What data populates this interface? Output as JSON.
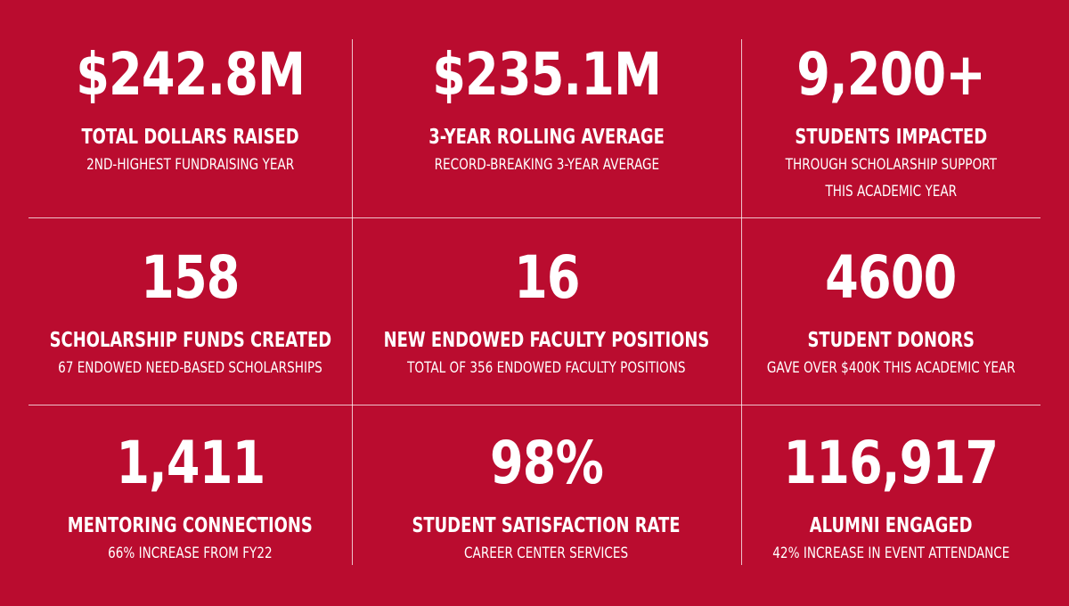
{
  "colors": {
    "background": "#ba0c2f",
    "text": "#ffffff",
    "divider": "#f2b8c3"
  },
  "stats": [
    {
      "value": "$242.8M",
      "label": "TOTAL DOLLARS RAISED",
      "sub": [
        "2ND-HIGHEST FUNDRAISING YEAR"
      ]
    },
    {
      "value": "$235.1M",
      "label": "3-YEAR ROLLING AVERAGE",
      "sub": [
        "RECORD-BREAKING 3-YEAR AVERAGE"
      ]
    },
    {
      "value": "9,200+",
      "label": "STUDENTS IMPACTED",
      "sub": [
        "THROUGH SCHOLARSHIP SUPPORT",
        "THIS ACADEMIC YEAR"
      ]
    },
    {
      "value": "158",
      "label": "SCHOLARSHIP FUNDS CREATED",
      "sub": [
        "67 ENDOWED NEED-BASED SCHOLARSHIPS"
      ]
    },
    {
      "value": "16",
      "label": "NEW ENDOWED FACULTY POSITIONS",
      "sub": [
        "TOTAL OF 356 ENDOWED FACULTY POSITIONS"
      ]
    },
    {
      "value": "4600",
      "label": "STUDENT DONORS",
      "sub": [
        "GAVE OVER $400K THIS ACADEMIC YEAR"
      ]
    },
    {
      "value": "1,411",
      "label": "MENTORING CONNECTIONS",
      "sub": [
        "66% INCREASE FROM FY22"
      ]
    },
    {
      "value": "98%",
      "label": "STUDENT SATISFACTION RATE",
      "sub": [
        "CAREER CENTER SERVICES"
      ]
    },
    {
      "value": "116,917",
      "label": "ALUMNI ENGAGED",
      "sub": [
        "42% INCREASE IN EVENT ATTENDANCE"
      ]
    }
  ]
}
